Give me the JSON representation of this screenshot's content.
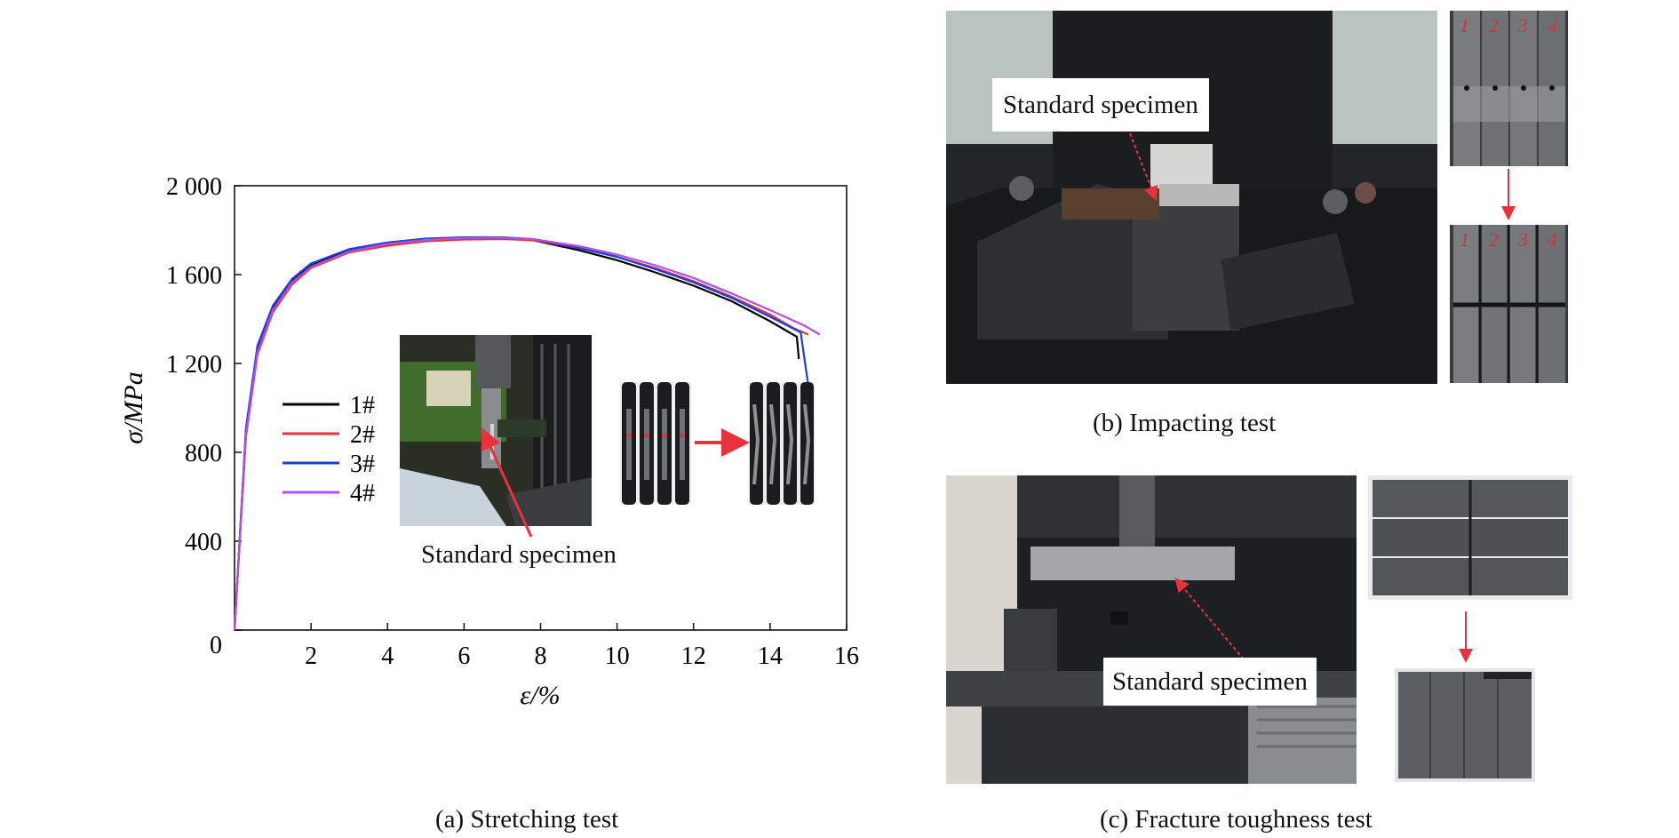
{
  "figure": {
    "caption_a": "(a) Stretching test",
    "caption_b": "(b) Impacting test",
    "caption_c": "(c) Fracture toughness test"
  },
  "inset_a": {
    "label": "Standard specimen"
  },
  "panel_b": {
    "label": "Standard specimen",
    "marks_before": [
      "1",
      "2",
      "3",
      "4"
    ],
    "marks_after": [
      "1",
      "2",
      "3",
      "4"
    ]
  },
  "panel_c": {
    "label": "Standard specimen"
  },
  "colors": {
    "arrow_red": "#e8313a",
    "series_1": "#000000",
    "series_2": "#e8313a",
    "series_3": "#1f3fd8",
    "series_4": "#b64fd9"
  },
  "chart_data": {
    "type": "line",
    "xlabel": "ε/%",
    "ylabel": "σ/MPa",
    "xlim": [
      0,
      16
    ],
    "ylim": [
      0,
      2000
    ],
    "x_ticks": [
      2,
      4,
      6,
      8,
      10,
      12,
      14,
      16
    ],
    "x_tick_labels": [
      "2",
      "4",
      "6",
      "8",
      "10",
      "12",
      "14",
      "16"
    ],
    "y_ticks": [
      0,
      400,
      800,
      1200,
      1600,
      2000
    ],
    "y_tick_labels": [
      "0",
      "400",
      "800",
      "1 200",
      "1 600",
      "2 000"
    ],
    "grid": false,
    "legend_position": "center-left",
    "series": [
      {
        "name": "1#",
        "color": "#000000",
        "x": [
          0,
          0.3,
          0.6,
          1.0,
          1.5,
          2.0,
          3.0,
          4.0,
          5.0,
          6.0,
          7.0,
          7.8,
          9.0,
          10.0,
          11.0,
          12.0,
          13.0,
          14.0,
          14.7,
          14.75
        ],
        "y": [
          0,
          900,
          1270,
          1450,
          1570,
          1640,
          1710,
          1740,
          1760,
          1765,
          1765,
          1755,
          1710,
          1665,
          1610,
          1550,
          1480,
          1390,
          1320,
          1220
        ]
      },
      {
        "name": "2#",
        "color": "#e8313a",
        "x": [
          0,
          0.3,
          0.6,
          1.0,
          1.5,
          2.0,
          3.0,
          4.0,
          5.0,
          6.0,
          7.0,
          7.8,
          9.0,
          10.0,
          11.0,
          12.0,
          13.0,
          14.0,
          14.6,
          15.0
        ],
        "y": [
          0,
          870,
          1240,
          1430,
          1555,
          1630,
          1700,
          1730,
          1750,
          1758,
          1760,
          1755,
          1720,
          1680,
          1630,
          1570,
          1500,
          1420,
          1360,
          1330
        ]
      },
      {
        "name": "3#",
        "color": "#1f3fd8",
        "x": [
          0,
          0.3,
          0.6,
          1.0,
          1.5,
          2.0,
          3.0,
          4.0,
          5.0,
          6.0,
          7.0,
          7.8,
          9.0,
          10.0,
          11.0,
          12.0,
          13.0,
          14.0,
          14.8,
          15.0
        ],
        "y": [
          0,
          910,
          1280,
          1460,
          1580,
          1650,
          1715,
          1745,
          1762,
          1768,
          1768,
          1760,
          1720,
          1680,
          1625,
          1565,
          1495,
          1410,
          1340,
          1100
        ]
      },
      {
        "name": "4#",
        "color": "#b64fd9",
        "x": [
          0,
          0.3,
          0.6,
          1.0,
          1.5,
          2.0,
          3.0,
          4.0,
          5.0,
          6.0,
          7.0,
          7.8,
          9.0,
          10.0,
          11.0,
          12.0,
          13.0,
          14.0,
          14.9,
          15.3
        ],
        "y": [
          0,
          880,
          1250,
          1440,
          1565,
          1635,
          1705,
          1738,
          1756,
          1765,
          1766,
          1760,
          1728,
          1690,
          1642,
          1585,
          1515,
          1440,
          1370,
          1330
        ]
      }
    ]
  }
}
